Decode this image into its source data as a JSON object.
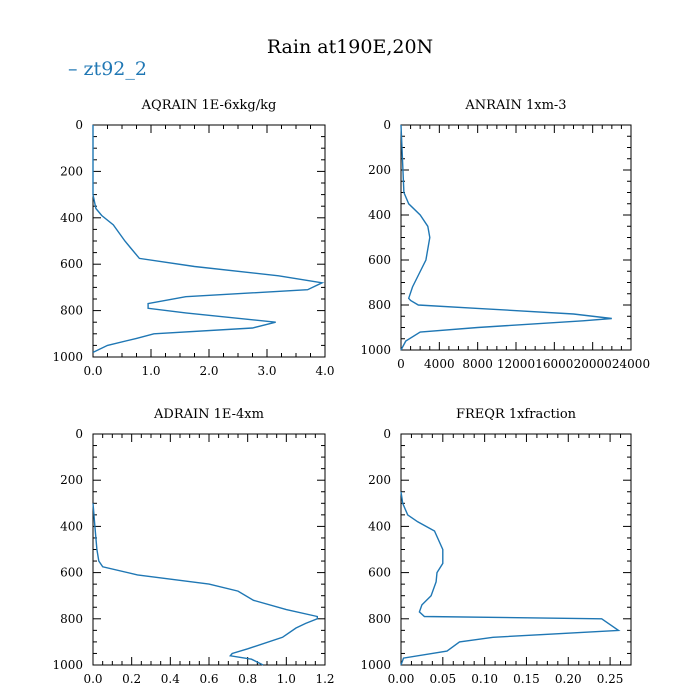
{
  "figure": {
    "title": "Rain at190E,20N",
    "legend": "zt92_2",
    "legend_color": "#1f77b4"
  },
  "chart_data": [
    {
      "type": "line",
      "title": "AQRAIN  1E-6xkg/kg",
      "xlim": [
        0,
        4.0
      ],
      "ylim": [
        1000,
        0
      ],
      "xticks": [
        0,
        1,
        2,
        3,
        4
      ],
      "xtick_labels": [
        "0.0",
        "1.0",
        "2.0",
        "3.0",
        "4.0"
      ],
      "yticks": [
        0,
        200,
        400,
        600,
        800,
        1000
      ],
      "ytick_labels": [
        "0",
        "200",
        "400",
        "600",
        "800",
        "1000"
      ],
      "series": [
        {
          "name": "zt92_2",
          "x": [
            0,
            0,
            0.05,
            0.15,
            0.35,
            0.55,
            0.65,
            0.8,
            1.75,
            3.2,
            3.95,
            3.7,
            1.6,
            0.95,
            0.95,
            1.6,
            3.15,
            2.75,
            1.05,
            0.75,
            0.25,
            0
          ],
          "y": [
            0,
            300,
            360,
            390,
            430,
            500,
            530,
            575,
            610,
            650,
            680,
            710,
            740,
            770,
            790,
            810,
            850,
            875,
            900,
            920,
            950,
            980
          ]
        }
      ]
    },
    {
      "type": "line",
      "title": "ANRAIN  1xm-3",
      "xlim": [
        0,
        24000
      ],
      "ylim": [
        1000,
        0
      ],
      "xticks": [
        0,
        4000,
        8000,
        12000,
        16000,
        20000,
        24000
      ],
      "xtick_labels": [
        "0",
        "4000",
        "8000",
        "12000",
        "16000",
        "20000",
        "24000"
      ],
      "yticks": [
        0,
        200,
        400,
        600,
        800,
        1000
      ],
      "ytick_labels": [
        "0",
        "200",
        "400",
        "600",
        "800",
        "1000"
      ],
      "series": [
        {
          "name": "zt92_2",
          "x": [
            0,
            300,
            800,
            2000,
            2800,
            3000,
            2600,
            1900,
            1200,
            800,
            1000,
            1800,
            8000,
            18000,
            22000,
            19000,
            8000,
            2000,
            500,
            0
          ],
          "y": [
            0,
            300,
            350,
            400,
            450,
            500,
            600,
            660,
            720,
            770,
            780,
            800,
            815,
            840,
            860,
            870,
            900,
            920,
            960,
            1000
          ]
        }
      ]
    },
    {
      "type": "line",
      "title": "ADRAIN  1E-4xm",
      "xlim": [
        0,
        1.2
      ],
      "ylim": [
        1000,
        0
      ],
      "xticks": [
        0,
        0.2,
        0.4,
        0.6,
        0.8,
        1.0,
        1.2
      ],
      "xtick_labels": [
        "0.0",
        "0.2",
        "0.4",
        "0.6",
        "0.8",
        "1.0",
        "1.2"
      ],
      "yticks": [
        0,
        200,
        400,
        600,
        800,
        1000
      ],
      "ytick_labels": [
        "0",
        "200",
        "400",
        "600",
        "800",
        "1000"
      ],
      "series": [
        {
          "name": "zt92_2",
          "x": [
            0,
            0.01,
            0.02,
            0.03,
            0.05,
            0.23,
            0.6,
            0.75,
            0.83,
            1.0,
            1.16,
            1.16,
            1.1,
            1.05,
            0.98,
            0.8,
            0.72,
            0.71,
            0.82,
            0.88
          ],
          "y": [
            300,
            400,
            500,
            550,
            575,
            610,
            650,
            680,
            720,
            760,
            790,
            800,
            820,
            840,
            880,
            930,
            950,
            960,
            975,
            1000
          ]
        }
      ]
    },
    {
      "type": "line",
      "title": "FREQR  1xfraction",
      "xlim": [
        0,
        0.275
      ],
      "ylim": [
        1000,
        0
      ],
      "xticks": [
        0,
        0.05,
        0.1,
        0.15,
        0.2,
        0.25
      ],
      "xtick_labels": [
        "0.00",
        "0.05",
        "0.10",
        "0.15",
        "0.20",
        "0.25"
      ],
      "yticks": [
        0,
        200,
        400,
        600,
        800,
        1000
      ],
      "ytick_labels": [
        "0",
        "200",
        "400",
        "600",
        "800",
        "1000"
      ],
      "series": [
        {
          "name": "zt92_2",
          "x": [
            0,
            0.002,
            0.008,
            0.02,
            0.04,
            0.05,
            0.05,
            0.043,
            0.042,
            0.036,
            0.025,
            0.022,
            0.028,
            0.24,
            0.26,
            0.11,
            0.07,
            0.055,
            0.003,
            0
          ],
          "y": [
            250,
            300,
            350,
            380,
            420,
            500,
            560,
            600,
            640,
            700,
            740,
            770,
            790,
            800,
            850,
            880,
            900,
            940,
            970,
            1000
          ]
        }
      ]
    }
  ]
}
